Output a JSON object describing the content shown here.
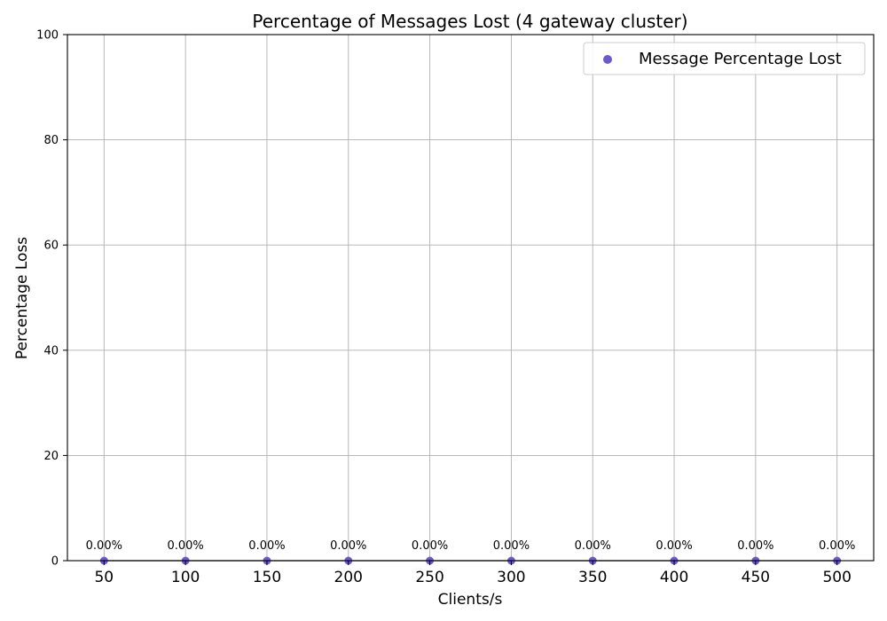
{
  "chart_data": {
    "type": "scatter",
    "title": "Percentage of Messages Lost (4 gateway cluster)",
    "xlabel": "Clients/s",
    "ylabel": "Percentage Loss",
    "x": [
      50,
      100,
      150,
      200,
      250,
      300,
      350,
      400,
      450,
      500
    ],
    "series": [
      {
        "name": "Message Percentage Lost",
        "values": [
          0,
          0,
          0,
          0,
          0,
          0,
          0,
          0,
          0,
          0
        ],
        "data_labels": [
          "0.00%",
          "0.00%",
          "0.00%",
          "0.00%",
          "0.00%",
          "0.00%",
          "0.00%",
          "0.00%",
          "0.00%",
          "0.00%"
        ],
        "color": "#6a5acd",
        "connector_color": "#000000"
      }
    ],
    "xticks": [
      "50",
      "100",
      "150",
      "200",
      "250",
      "300",
      "350",
      "400",
      "450",
      "500"
    ],
    "yticks": [
      "0",
      "20",
      "40",
      "60",
      "80",
      "100"
    ],
    "ylim": [
      0,
      100
    ],
    "grid": true,
    "legend_position": "top-right"
  }
}
